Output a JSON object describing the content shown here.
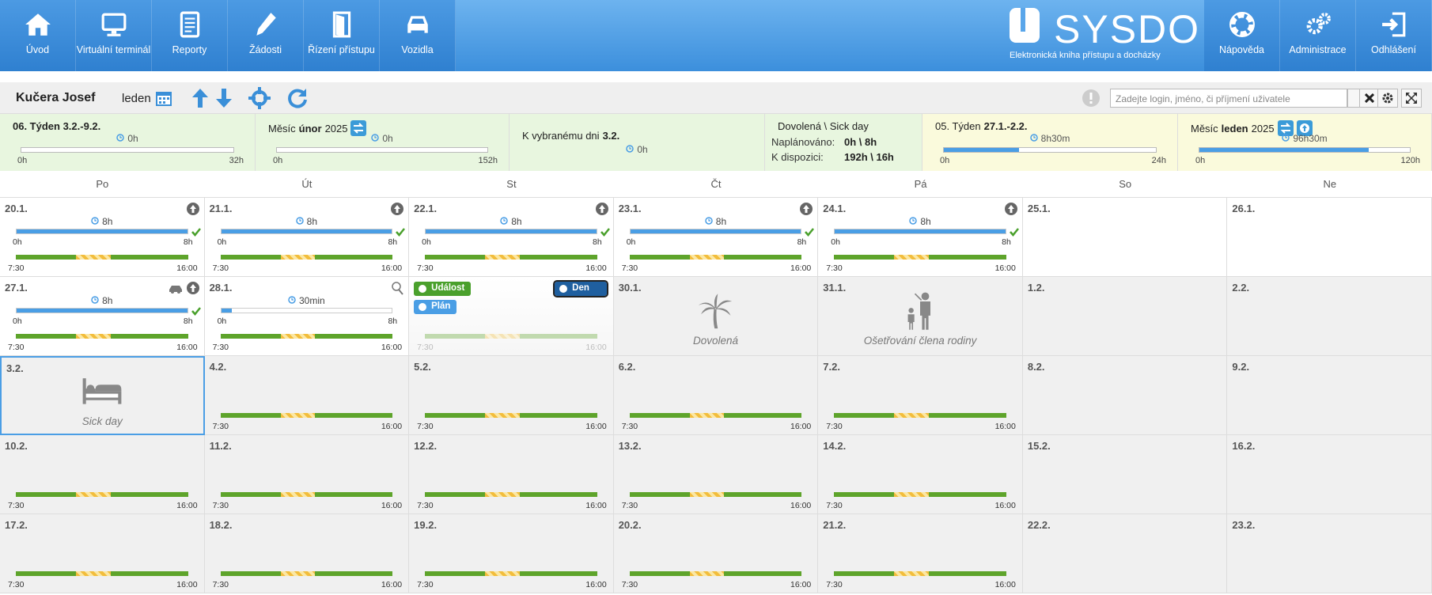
{
  "nav": {
    "left": [
      "Úvod",
      "Virtuální terminál",
      "Reporty",
      "Žádosti",
      "Řízení přístupu",
      "Vozidla"
    ],
    "right": [
      "Nápověda",
      "Administrace",
      "Odhlášení"
    ],
    "logo": "SYSDO",
    "tagline": "Elektronická kniha přístupu a docházky"
  },
  "toolbar": {
    "name": "Kučera Josef",
    "month": "leden",
    "search_placeholder": "Zadejte login, jméno, či příjmení uživatele"
  },
  "summary": [
    {
      "kind": "progress",
      "color": "green",
      "title": [
        {
          "text": "06. Týden 3.2.-9.2.",
          "bold": true
        }
      ],
      "value": "0h",
      "min": "0h",
      "max": "32h"
    },
    {
      "kind": "progress",
      "color": "green",
      "title": [
        {
          "text": "Měsíc",
          "bold": false
        },
        {
          "text": "únor",
          "bold": true
        },
        {
          "text": "2025",
          "bold": false
        }
      ],
      "buttons": [
        "swap"
      ],
      "value": "0h",
      "min": "0h",
      "max": "152h"
    },
    {
      "kind": "single",
      "color": "green",
      "title": [
        {
          "text": "K vybranému dni",
          "bold": false
        },
        {
          "text": "3.2.",
          "bold": true
        }
      ],
      "value": "0h"
    },
    {
      "kind": "stats",
      "color": "green",
      "title": [
        {
          "text": "Dovolená \\ Sick day",
          "bold": false
        }
      ],
      "rows": [
        [
          "Naplánováno:",
          "0h \\ 8h"
        ],
        [
          "K dispozici:",
          "192h \\ 16h"
        ]
      ]
    },
    {
      "kind": "progress",
      "color": "yellow",
      "title": [
        {
          "text": "05. Týden",
          "bold": false
        },
        {
          "text": "27.1.-2.2.",
          "bold": true
        }
      ],
      "value": "8h30m",
      "min": "0h",
      "max": "24h"
    },
    {
      "kind": "progress",
      "color": "yellow",
      "title": [
        {
          "text": "Měsíc",
          "bold": false
        },
        {
          "text": "leden",
          "bold": true
        },
        {
          "text": "2025",
          "bold": false
        }
      ],
      "buttons": [
        "swap",
        "up"
      ],
      "value": "96h30m",
      "min": "0h",
      "max": "120h"
    }
  ],
  "calendar": {
    "weekdays": [
      "Po",
      "Út",
      "St",
      "Čt",
      "Pá",
      "So",
      "Ne"
    ],
    "weeks": [
      [
        {
          "date": "20.1.",
          "past": true,
          "icons": [
            "up"
          ],
          "hours": "8h",
          "min": "0h",
          "max": "8h",
          "check": true,
          "start": "7:30",
          "end": "16:00"
        },
        {
          "date": "21.1.",
          "past": true,
          "icons": [
            "up"
          ],
          "hours": "8h",
          "min": "0h",
          "max": "8h",
          "check": true,
          "start": "7:30",
          "end": "16:00"
        },
        {
          "date": "22.1.",
          "past": true,
          "icons": [
            "up"
          ],
          "hours": "8h",
          "min": "0h",
          "max": "8h",
          "check": true,
          "start": "7:30",
          "end": "16:00"
        },
        {
          "date": "23.1.",
          "past": true,
          "icons": [
            "up"
          ],
          "hours": "8h",
          "min": "0h",
          "max": "8h",
          "check": true,
          "start": "7:30",
          "end": "16:00"
        },
        {
          "date": "24.1.",
          "past": true,
          "icons": [
            "up"
          ],
          "hours": "8h",
          "min": "0h",
          "max": "8h",
          "check": true,
          "start": "7:30",
          "end": "16:00"
        },
        {
          "date": "25.1.",
          "past": true
        },
        {
          "date": "26.1.",
          "past": true
        }
      ],
      [
        {
          "date": "27.1.",
          "past": true,
          "icons": [
            "up",
            "car"
          ],
          "hours": "8h",
          "min": "0h",
          "max": "8h",
          "check": true,
          "start": "7:30",
          "end": "16:00"
        },
        {
          "date": "28.1.",
          "past": true,
          "icons": [
            "lamp"
          ],
          "hours": "30min",
          "min": "0h",
          "max": "8h",
          "check": false,
          "start": "7:30",
          "end": "16:00"
        },
        {
          "past": true,
          "hover": true,
          "buttons": [
            "Událost",
            "Plán",
            "Den"
          ],
          "start": "7:30",
          "end": "16:00"
        },
        {
          "date": "30.1.",
          "absence": "Dovolená",
          "symbol": "palm"
        },
        {
          "date": "31.1.",
          "absence": "Ošetřování člena rodiny",
          "symbol": "family"
        },
        {
          "date": "1.2."
        },
        {
          "date": "2.2."
        }
      ],
      [
        {
          "date": "3.2.",
          "absence": "Sick day",
          "symbol": "bed",
          "selected": true
        },
        {
          "date": "4.2.",
          "start": "7:30",
          "end": "16:00"
        },
        {
          "date": "5.2.",
          "start": "7:30",
          "end": "16:00"
        },
        {
          "date": "6.2.",
          "start": "7:30",
          "end": "16:00"
        },
        {
          "date": "7.2.",
          "start": "7:30",
          "end": "16:00"
        },
        {
          "date": "8.2."
        },
        {
          "date": "9.2."
        }
      ],
      [
        {
          "date": "10.2.",
          "start": "7:30",
          "end": "16:00"
        },
        {
          "date": "11.2.",
          "start": "7:30",
          "end": "16:00"
        },
        {
          "date": "12.2.",
          "start": "7:30",
          "end": "16:00"
        },
        {
          "date": "13.2.",
          "start": "7:30",
          "end": "16:00"
        },
        {
          "date": "14.2.",
          "start": "7:30",
          "end": "16:00"
        },
        {
          "date": "15.2."
        },
        {
          "date": "16.2."
        }
      ],
      [
        {
          "date": "17.2.",
          "start": "7:30",
          "end": "16:00"
        },
        {
          "date": "18.2.",
          "start": "7:30",
          "end": "16:00"
        },
        {
          "date": "19.2.",
          "start": "7:30",
          "end": "16:00"
        },
        {
          "date": "20.2.",
          "start": "7:30",
          "end": "16:00"
        },
        {
          "date": "21.2.",
          "start": "7:30",
          "end": "16:00"
        },
        {
          "date": "22.2."
        },
        {
          "date": "23.2."
        }
      ]
    ]
  }
}
